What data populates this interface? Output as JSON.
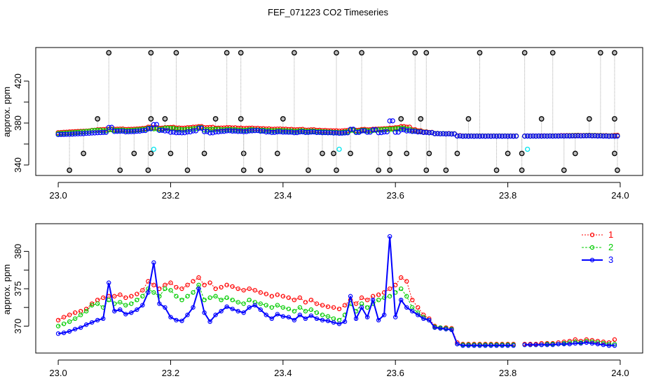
{
  "title": "FEF_071223  CO2 Timeseries",
  "colors": {
    "series1": "#ff0000",
    "series2": "#00cc00",
    "series3": "#0000ff",
    "outlier": "#000000",
    "flag": "#00e5ee",
    "connector": "#aaaaaa"
  },
  "chart_data": [
    {
      "type": "scatter",
      "ylabel": "approx. ppm",
      "xlim": [
        22.96,
        24.04
      ],
      "ylim": [
        330,
        452
      ],
      "xticks": [
        "23.0",
        "23.2",
        "23.4",
        "23.6",
        "23.8",
        "24.0"
      ],
      "yticks": [
        "340",
        "380",
        "420"
      ],
      "grid": false,
      "outliers_high": {
        "y": 447,
        "x": [
          23.09,
          23.165,
          23.21,
          23.3,
          23.325,
          23.42,
          23.495,
          23.54,
          23.635,
          23.655,
          23.75,
          23.83,
          23.88,
          23.965,
          23.99
        ]
      },
      "outliers_mid_high": {
        "y": 384,
        "x": [
          23.07,
          23.165,
          23.19,
          23.28,
          23.325,
          23.4,
          23.61,
          23.645,
          23.73,
          23.86,
          23.945,
          23.99
        ]
      },
      "outliers_mid_low": {
        "y": 351,
        "x": [
          23.045,
          23.135,
          23.165,
          23.2,
          23.26,
          23.33,
          23.39,
          23.47,
          23.49,
          23.52,
          23.59,
          23.62,
          23.66,
          23.71,
          23.8,
          23.825,
          23.92,
          23.99
        ]
      },
      "outliers_low": {
        "y": 335,
        "x": [
          23.02,
          23.11,
          23.16,
          23.23,
          23.33,
          23.36,
          23.445,
          23.495,
          23.57,
          23.59,
          23.655,
          23.69,
          23.78,
          23.825,
          23.9,
          23.995
        ]
      },
      "flagged": {
        "y": 355,
        "x": [
          23.17,
          23.5,
          23.835
        ]
      }
    },
    {
      "type": "line",
      "ylabel": "approx. ppm",
      "xlim": [
        22.96,
        24.04
      ],
      "ylim": [
        366.4,
        383.7
      ],
      "xticks": [
        "23.0",
        "23.2",
        "23.4",
        "23.6",
        "23.8",
        "24.0"
      ],
      "yticks": [
        "370",
        "375",
        "380"
      ],
      "grid": false,
      "x_start": 23.0,
      "x_step": 0.01,
      "series": [
        {
          "name": "1",
          "values": [
            370.8,
            371.2,
            371.5,
            371.8,
            372.0,
            372.3,
            373.0,
            373.5,
            373.8,
            374.0,
            374.0,
            374.2,
            373.8,
            374.0,
            374.3,
            374.8,
            376.0,
            375.5,
            375.0,
            375.5,
            375.8,
            375.2,
            375.0,
            375.5,
            376.0,
            376.5,
            375.5,
            375.8,
            375.0,
            375.2,
            375.5,
            375.3,
            375.0,
            374.8,
            375.0,
            374.8,
            374.5,
            374.3,
            374.0,
            374.2,
            374.0,
            373.8,
            373.5,
            373.8,
            373.2,
            373.5,
            373.0,
            372.8,
            372.6,
            372.5,
            372.3,
            372.8,
            373.5,
            373.0,
            373.8,
            373.5,
            374.0,
            374.2,
            374.5,
            375.0,
            375.5,
            376.5,
            376.0,
            373.5,
            372.5,
            371.5,
            371.0,
            370.0,
            369.8,
            369.8,
            369.7,
            367.8,
            367.6,
            367.6,
            367.6,
            367.6,
            367.6,
            367.6,
            367.6,
            367.6,
            367.6,
            367.6,
            null,
            367.6,
            367.6,
            367.6,
            367.7,
            367.7,
            367.7,
            367.8,
            367.9,
            368.0,
            368.2,
            368.0,
            368.2,
            368.1,
            368.0,
            367.9,
            367.8,
            368.2
          ]
        },
        {
          "name": "2",
          "values": [
            370.0,
            370.3,
            370.6,
            371.0,
            371.5,
            372.0,
            372.8,
            373.0,
            372.5,
            373.5,
            373.0,
            373.2,
            372.8,
            373.0,
            373.5,
            374.0,
            375.0,
            374.5,
            374.0,
            375.0,
            374.8,
            374.0,
            373.5,
            374.0,
            374.5,
            375.5,
            373.5,
            373.8,
            374.0,
            373.5,
            373.8,
            373.5,
            373.2,
            373.0,
            373.5,
            373.2,
            373.0,
            372.8,
            372.5,
            372.8,
            372.5,
            372.3,
            372.0,
            372.5,
            372.0,
            372.2,
            371.8,
            371.5,
            371.3,
            371.0,
            370.8,
            371.5,
            373.0,
            372.0,
            373.0,
            372.5,
            373.0,
            373.5,
            373.8,
            374.0,
            374.5,
            375.0,
            374.0,
            372.5,
            371.8,
            371.2,
            370.8,
            369.9,
            369.8,
            369.7,
            369.6,
            367.6,
            367.5,
            367.5,
            367.5,
            367.5,
            367.5,
            367.5,
            367.5,
            367.5,
            367.5,
            367.5,
            null,
            367.5,
            367.5,
            367.5,
            367.5,
            367.6,
            367.6,
            367.6,
            367.7,
            367.8,
            367.9,
            367.8,
            368.0,
            367.9,
            367.8,
            367.7,
            367.6,
            367.6
          ]
        },
        {
          "name": "3",
          "values": [
            369.0,
            369.1,
            369.3,
            369.6,
            369.8,
            370.2,
            370.5,
            370.8,
            371.0,
            375.8,
            372.0,
            372.2,
            371.6,
            371.8,
            372.2,
            372.8,
            374.5,
            378.5,
            373.0,
            372.5,
            371.2,
            370.8,
            370.7,
            371.5,
            372.5,
            375.0,
            371.8,
            370.6,
            371.5,
            372.0,
            372.6,
            372.3,
            372.0,
            371.8,
            372.5,
            372.8,
            372.2,
            371.5,
            371.0,
            371.6,
            371.3,
            371.2,
            370.8,
            371.5,
            371.0,
            371.4,
            371.0,
            370.8,
            370.7,
            370.5,
            370.3,
            370.6,
            374.0,
            371.0,
            372.5,
            371.2,
            373.5,
            370.8,
            371.5,
            382.0,
            371.2,
            373.5,
            372.5,
            372.0,
            371.5,
            371.0,
            370.8,
            369.8,
            369.7,
            369.6,
            369.5,
            367.6,
            367.4,
            367.4,
            367.4,
            367.4,
            367.4,
            367.4,
            367.4,
            367.4,
            367.4,
            367.4,
            null,
            367.5,
            367.5,
            367.5,
            367.5,
            367.5,
            367.5,
            367.6,
            367.6,
            367.6,
            367.7,
            367.7,
            367.8,
            367.7,
            367.6,
            367.5,
            367.4,
            367.4
          ]
        }
      ]
    }
  ]
}
